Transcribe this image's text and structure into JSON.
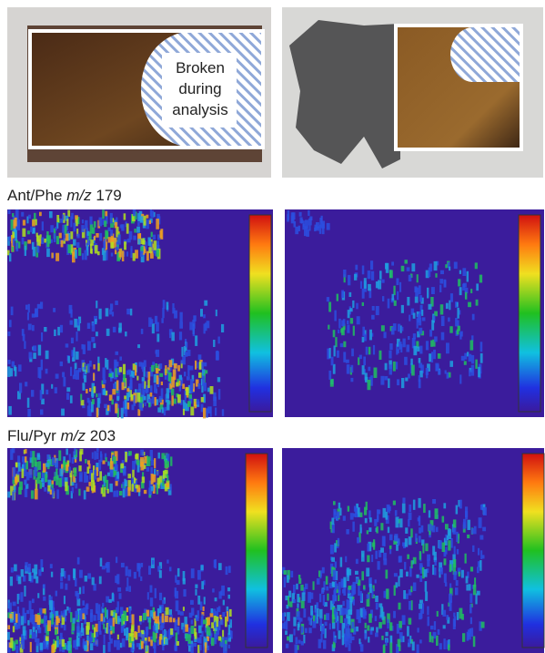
{
  "photo_annotation": {
    "lines": [
      "Broken",
      "during",
      "analysis"
    ]
  },
  "panel_labels": [
    {
      "compound": "Ant/Phe",
      "unit": "m/z",
      "mass": 179
    },
    {
      "compound": "Flu/Pyr",
      "unit": "m/z",
      "mass": 203
    }
  ]
}
